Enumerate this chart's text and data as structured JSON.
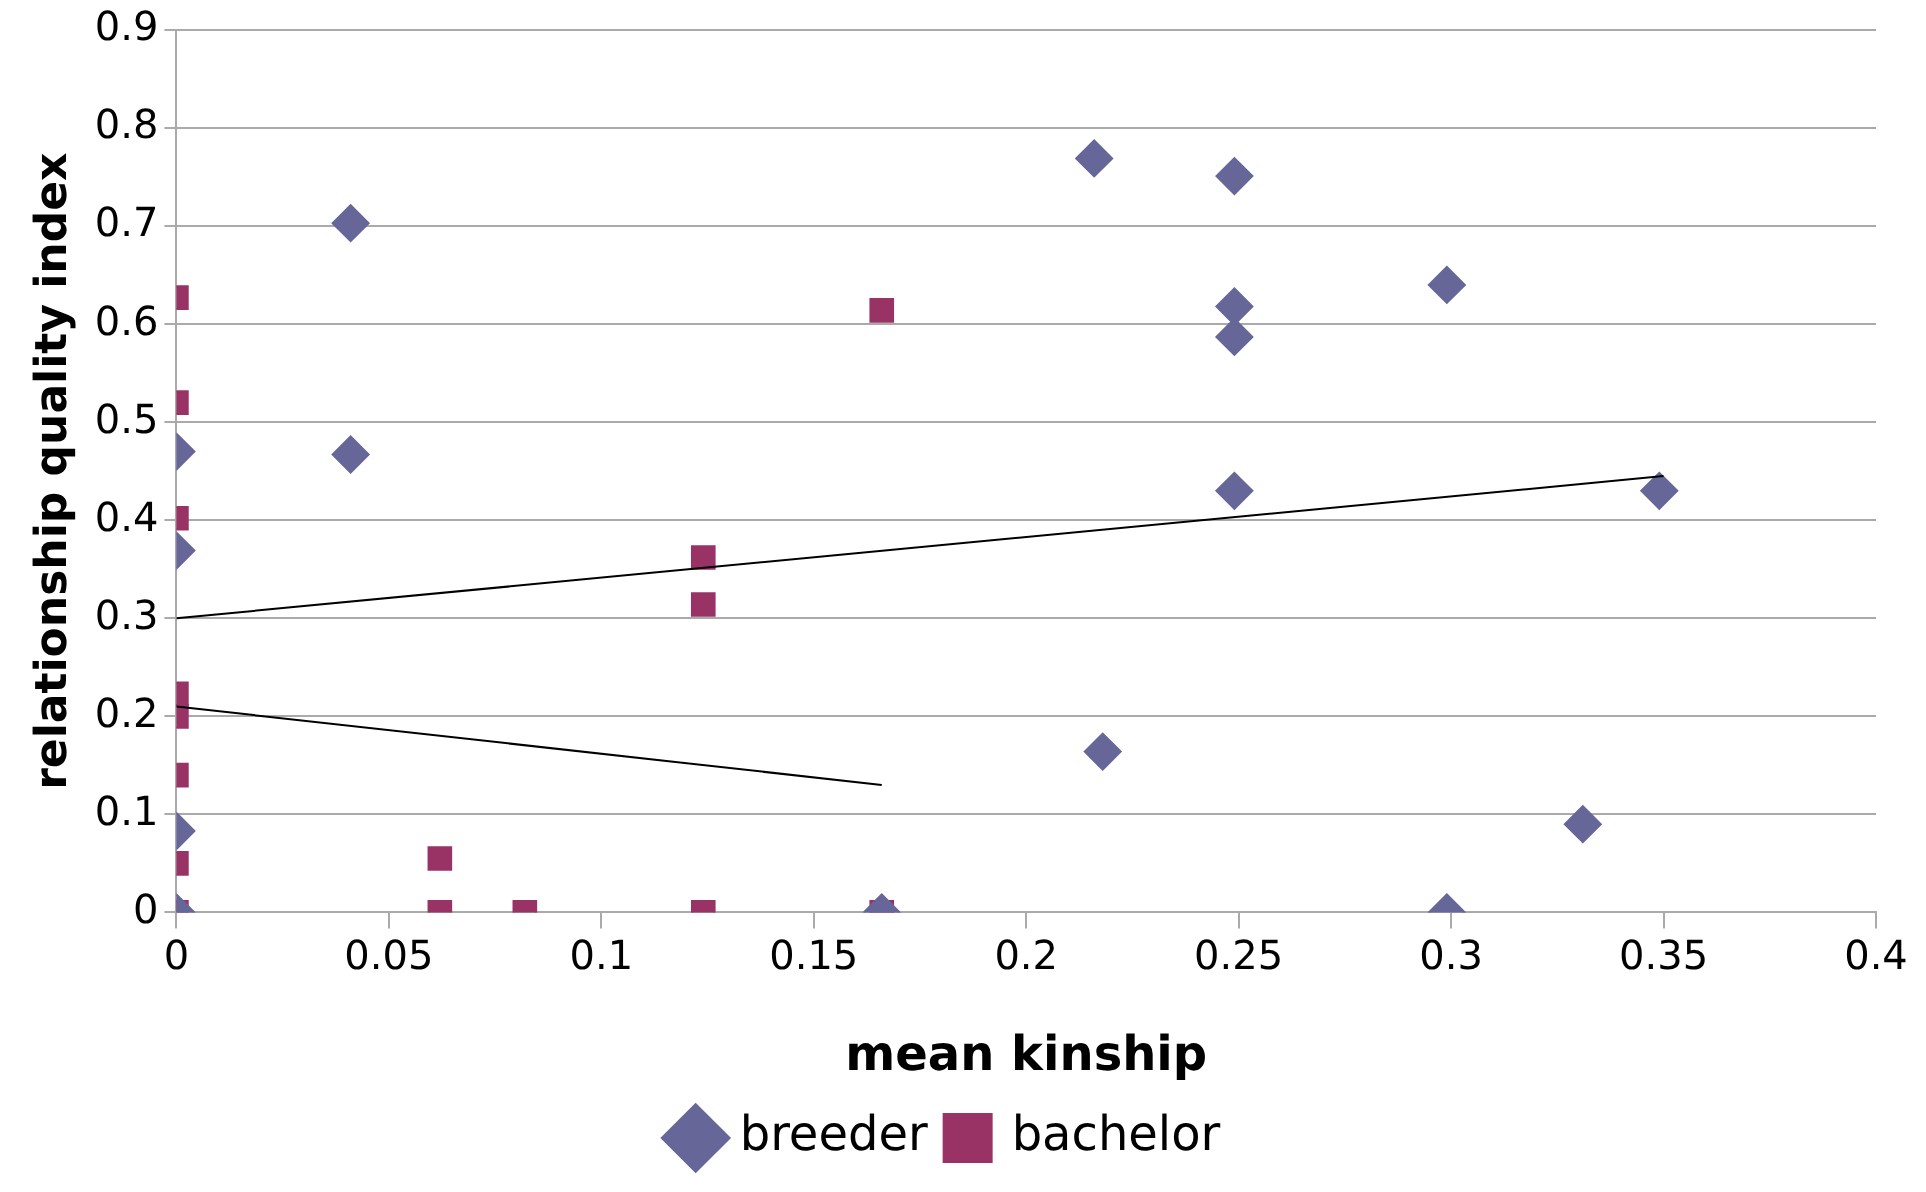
{
  "chart_data": {
    "type": "scatter",
    "xlabel": "mean kinship",
    "ylabel": "relationship quality index",
    "xlim": [
      0,
      0.4
    ],
    "xticks": [
      0,
      0.05,
      0.1,
      0.15,
      0.2,
      0.25,
      0.3,
      0.35,
      0.4
    ],
    "ylim": [
      0,
      0.9
    ],
    "yticks": [
      0,
      0.1,
      0.2,
      0.3,
      0.4,
      0.5,
      0.6,
      0.7,
      0.8,
      0.9
    ],
    "grid": "y",
    "legend": "bottom",
    "series": [
      {
        "name": "breeder",
        "color": "#666699",
        "marker": "diamond",
        "x": [
          0.041,
          0.041,
          0.216,
          0.249,
          0.249,
          0.249,
          0.249,
          0.299,
          0.349,
          0.218,
          0.331,
          0.299,
          0,
          0,
          0,
          0,
          0.166
        ],
        "values": [
          0.703,
          0.467,
          0.769,
          0.751,
          0.618,
          0.587,
          0.43,
          0.64,
          0.43,
          0.164,
          0.09,
          0,
          0.47,
          0.369,
          0.083,
          0,
          0
        ]
      },
      {
        "name": "bachelor",
        "color": "#993366",
        "marker": "square",
        "x": [
          0,
          0,
          0,
          0,
          0,
          0,
          0,
          0,
          0.166,
          0.124,
          0.124,
          0.062,
          0.062,
          0.082,
          0.124,
          0.166
        ],
        "values": [
          0.627,
          0.52,
          0.402,
          0.223,
          0.2,
          0.14,
          0.05,
          0,
          0.614,
          0.362,
          0.314,
          0.055,
          0,
          0,
          0,
          0
        ]
      },
      {
        "type": "line",
        "color": "#000000",
        "marker": "none",
        "x": [
          0,
          0.35
        ],
        "values": [
          0.3,
          0.445
        ]
      },
      {
        "type": "line",
        "color": "#000000",
        "marker": "none",
        "x": [
          0,
          0.166
        ],
        "values": [
          0.21,
          0.13
        ]
      }
    ]
  }
}
